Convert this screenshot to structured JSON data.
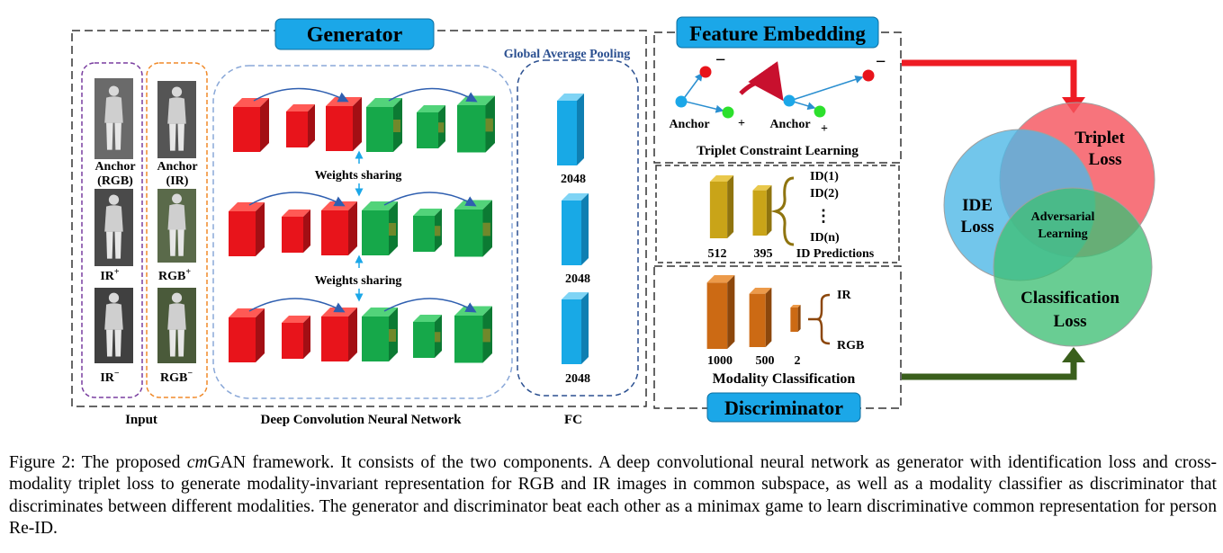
{
  "figure": {
    "generator_title": "Generator",
    "feature_embedding_title": "Feature Embedding",
    "discriminator_title": "Discriminator",
    "gap_label": "Global Average Pooling",
    "inputs": {
      "anchor_rgb_line1": "Anchor",
      "anchor_rgb_line2": "(RGB)",
      "anchor_ir_line1": "Anchor",
      "anchor_ir_line2": "(IR)",
      "ir_pos": "IR",
      "ir_pos_sup": "+",
      "rgb_pos": "RGB",
      "rgb_pos_sup": "+",
      "ir_neg": "IR",
      "ir_neg_sup": "−",
      "rgb_neg": "RGB",
      "rgb_neg_sup": "−"
    },
    "weights_sharing_1": "Weights sharing",
    "weights_sharing_2": "Weights sharing",
    "fc_dims": [
      "2048",
      "2048",
      "2048"
    ],
    "bottom_labels": {
      "input": "Input",
      "dcnn": "Deep Convolution Neural Network",
      "fc": "FC"
    },
    "triplet": {
      "anchor_left": "Anchor",
      "anchor_right": "Anchor",
      "minus_left": "−",
      "minus_right": "−",
      "plus_left": "+",
      "plus_right": "+",
      "caption": "Triplet Constraint Learning"
    },
    "id_pred": {
      "dims": [
        "512",
        "395"
      ],
      "id1": "ID(1)",
      "id2": "ID(2)",
      "dots": "⋮",
      "idn": "ID(n)",
      "caption": "ID Predictions"
    },
    "modality": {
      "dims": [
        "1000",
        "500",
        "2"
      ],
      "ir": "IR",
      "rgb": "RGB",
      "caption": "Modality Classification"
    },
    "venn": {
      "triplet_line1": "Triplet",
      "triplet_line2": "Loss",
      "ide_line1": "IDE",
      "ide_line2": "Loss",
      "adv_line1": "Adversarial",
      "adv_line2": "Learning",
      "cls_line1": "Classification",
      "cls_line2": "Loss"
    },
    "colors": {
      "title_box": "#1ba7e8",
      "red_block": "#e8141b",
      "green_block": "#16a84a",
      "fc_blue": "#18a9e6",
      "gold_block": "#c9a418",
      "orange_block": "#cc6a14",
      "red_arrow": "#ee1c24",
      "green_arrow": "#3a5f1c",
      "venn_red": "#f5555f",
      "venn_blue": "#4fb8e6",
      "venn_green": "#3fbf74"
    }
  },
  "caption": {
    "prefix": "Figure 2: The proposed ",
    "emph": "cm",
    "suffix": "GAN framework.  It consists of the two components.  A deep convolutional neural network as generator with identification loss and cross-modality triplet loss to generate modality-invariant representation for RGB and IR images in common subspace, as well as a modality classifier as discriminator that discriminates between different modalities. The generator and discriminator beat each other as a minimax game to learn discriminative common representation for person Re-ID."
  }
}
